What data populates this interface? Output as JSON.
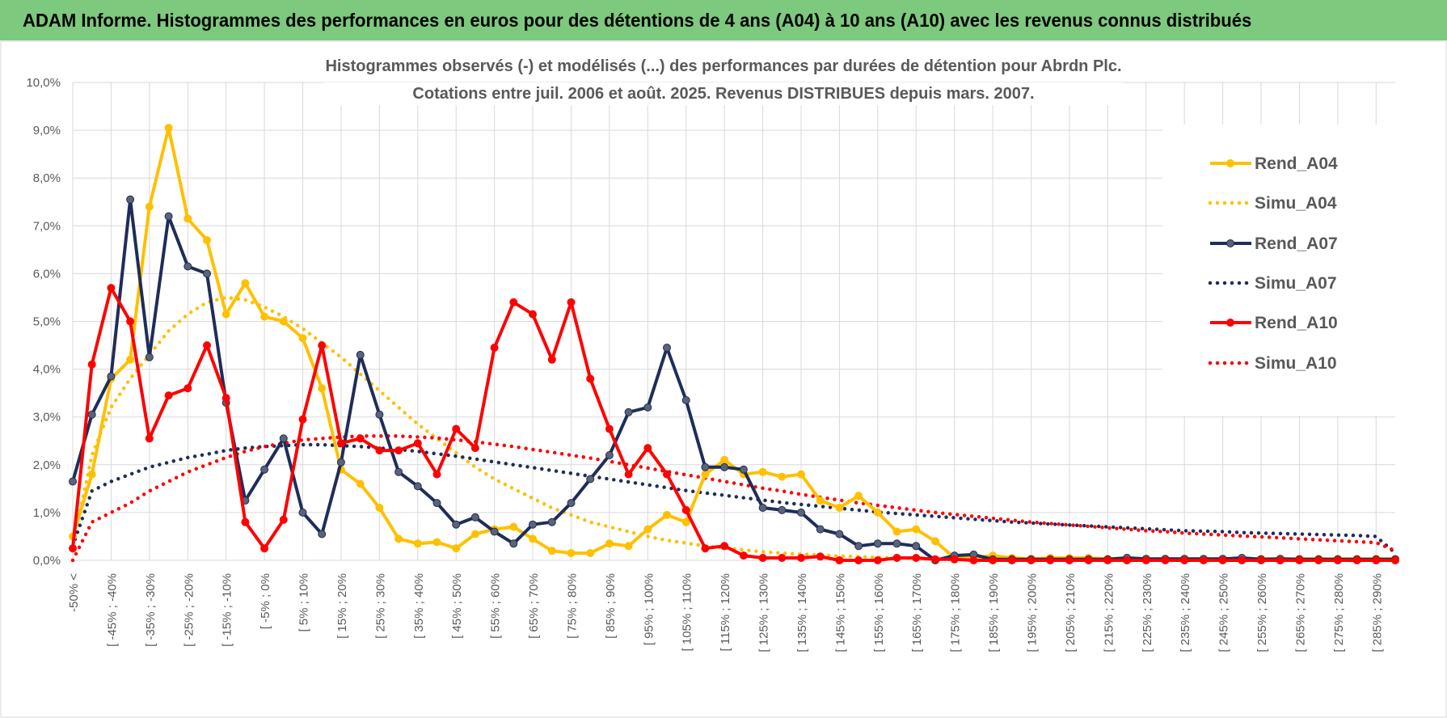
{
  "banner": {
    "title": "ADAM Informe. Histogrammes des performances en euros pour des détentions de 4 ans (A04) à 10 ans (A10) avec les revenus connus distribués"
  },
  "chart_data": {
    "type": "line",
    "title": [
      "Histogrammes observés (-) et modélisés (...) des performances par durées de détention pour Abrdn Plc.",
      "Cotations entre juil. 2006 et août. 2025. Revenus DISTRIBUES depuis mars. 2007."
    ],
    "xlabel": "",
    "ylabel": "",
    "ylim": [
      0,
      10
    ],
    "yticks": [
      "0,0%",
      "1,0%",
      "2,0%",
      "3,0%",
      "4,0%",
      "5,0%",
      "6,0%",
      "7,0%",
      "8,0%",
      "9,0%",
      "10,0%"
    ],
    "grid": true,
    "legend_position": "right",
    "x_tick_labels": [
      "-50% <",
      "[ -45% ; -40%",
      "[ -35% ; -30%",
      "[ -25% ; -20%",
      "[ -15% ; -10%",
      "[ -5% ; 0%",
      "[ 5% ; 10%",
      "[ 15% ; 20%",
      "[ 25% ; 30%",
      "[ 35% ; 40%",
      "[ 45% ; 50%",
      "[ 55% ; 60%",
      "[ 65% ; 70%",
      "[ 75% ; 80%",
      "[ 85% ; 90%",
      "[ 95% ; 100%",
      "[ 105% ; 110%",
      "[ 115% ; 120%",
      "[ 125% ; 130%",
      "[ 135% ; 140%",
      "[ 145% ; 150%",
      "[ 155% ; 160%",
      "[ 165% ; 170%",
      "[ 175% ; 180%",
      "[ 185% ; 190%",
      "[ 195% ; 200%",
      "[ 205% ; 210%",
      "[ 215% ; 220%",
      "[ 225% ; 230%",
      "[ 235% ; 240%",
      "[ 245% ; 250%",
      "[ 255% ; 260%",
      "[ 265% ; 270%",
      "[ 275% ; 280%",
      "[ 285% ; 290%"
    ],
    "num_points": 70,
    "series": [
      {
        "name": "Rend_A04",
        "style": "solid",
        "color": "#ffc000",
        "values": [
          0.5,
          1.8,
          3.8,
          4.2,
          7.4,
          9.05,
          7.15,
          6.7,
          5.15,
          5.8,
          5.1,
          5.0,
          4.65,
          3.6,
          1.9,
          1.6,
          1.1,
          0.45,
          0.35,
          0.38,
          0.25,
          0.55,
          0.65,
          0.7,
          0.45,
          0.2,
          0.15,
          0.15,
          0.35,
          0.3,
          0.65,
          0.95,
          0.8,
          1.8,
          2.1,
          1.8,
          1.85,
          1.75,
          1.8,
          1.25,
          1.1,
          1.35,
          1.0,
          0.6,
          0.65,
          0.4,
          0.05,
          0.05,
          0.1,
          0.05,
          0.03,
          0.05,
          0.05,
          0.05,
          0.03,
          0.05,
          0.03,
          0.03,
          0.03,
          0.03,
          0.03,
          0.03,
          0.03,
          0.03,
          0.03,
          0.03,
          0.03,
          0.03,
          0.03,
          0.03
        ]
      },
      {
        "name": "Simu_A04",
        "style": "dotted",
        "color": "#ffc000",
        "values": [
          0.3,
          2.2,
          3.2,
          3.8,
          4.3,
          4.8,
          5.15,
          5.4,
          5.5,
          5.45,
          5.3,
          5.1,
          4.85,
          4.55,
          4.25,
          3.9,
          3.55,
          3.2,
          2.85,
          2.55,
          2.25,
          1.95,
          1.7,
          1.5,
          1.3,
          1.1,
          0.95,
          0.8,
          0.7,
          0.6,
          0.5,
          0.42,
          0.36,
          0.3,
          0.26,
          0.22,
          0.18,
          0.15,
          0.13,
          0.11,
          0.09,
          0.08,
          0.06,
          0.05,
          0.04,
          0.04,
          0.03,
          0.03,
          0.02,
          0.02,
          0.02,
          0.01,
          0.01,
          0.01,
          0.01,
          0.01,
          0.01,
          0.01,
          0.01,
          0.01,
          0.0,
          0.0,
          0.0,
          0.0,
          0.0,
          0.0,
          0.0,
          0.0,
          0.0,
          0.0
        ]
      },
      {
        "name": "Rend_A07",
        "style": "solid",
        "color": "#1f2d5a",
        "values": [
          1.65,
          3.05,
          3.85,
          7.55,
          4.25,
          7.2,
          6.15,
          6.0,
          3.3,
          1.25,
          1.9,
          2.55,
          1.0,
          0.55,
          2.05,
          4.3,
          3.05,
          1.85,
          1.55,
          1.2,
          0.75,
          0.9,
          0.6,
          0.35,
          0.75,
          0.8,
          1.2,
          1.7,
          2.2,
          3.1,
          3.2,
          4.45,
          3.35,
          1.95,
          1.95,
          1.9,
          1.1,
          1.05,
          1.0,
          0.65,
          0.55,
          0.3,
          0.35,
          0.35,
          0.3,
          0.0,
          0.1,
          0.12,
          0.02,
          0.02,
          0.02,
          0.02,
          0.02,
          0.02,
          0.02,
          0.05,
          0.03,
          0.03,
          0.03,
          0.03,
          0.03,
          0.05,
          0.02,
          0.03,
          0.02,
          0.02,
          0.02,
          0.02,
          0.02,
          0.02
        ]
      },
      {
        "name": "Simu_A07",
        "style": "dotted",
        "color": "#1f2d5a",
        "values": [
          0.3,
          1.45,
          1.65,
          1.8,
          1.95,
          2.05,
          2.15,
          2.22,
          2.3,
          2.35,
          2.38,
          2.4,
          2.42,
          2.42,
          2.4,
          2.38,
          2.35,
          2.32,
          2.28,
          2.23,
          2.18,
          2.12,
          2.06,
          2.0,
          1.94,
          1.88,
          1.82,
          1.76,
          1.7,
          1.64,
          1.58,
          1.52,
          1.46,
          1.41,
          1.36,
          1.31,
          1.26,
          1.21,
          1.17,
          1.13,
          1.09,
          1.05,
          1.01,
          0.98,
          0.95,
          0.92,
          0.89,
          0.86,
          0.83,
          0.8,
          0.78,
          0.76,
          0.74,
          0.72,
          0.7,
          0.68,
          0.66,
          0.64,
          0.62,
          0.61,
          0.6,
          0.58,
          0.57,
          0.56,
          0.55,
          0.54,
          0.53,
          0.52,
          0.5,
          0.15
        ]
      },
      {
        "name": "Rend_A10",
        "style": "solid",
        "color": "#ff0000",
        "values": [
          0.25,
          4.1,
          5.7,
          5.0,
          2.55,
          3.45,
          3.6,
          4.5,
          3.4,
          0.8,
          0.25,
          0.85,
          2.95,
          4.5,
          2.45,
          2.55,
          2.3,
          2.3,
          2.45,
          1.8,
          2.75,
          2.35,
          4.45,
          5.4,
          5.15,
          4.2,
          5.4,
          3.8,
          2.75,
          1.8,
          2.35,
          1.8,
          1.05,
          0.25,
          0.3,
          0.1,
          0.05,
          0.05,
          0.05,
          0.08,
          0.0,
          0.0,
          0.0,
          0.05,
          0.05,
          0.02,
          0.02,
          0.0,
          0.0,
          0.0,
          0.0,
          0.0,
          0.0,
          0.0,
          0.0,
          0.0,
          0.0,
          0.0,
          0.0,
          0.0,
          0.0,
          0.0,
          0.0,
          0.0,
          0.0,
          0.0,
          0.0,
          0.0,
          0.0,
          0.0
        ]
      },
      {
        "name": "Simu_A10",
        "style": "dotted",
        "color": "#ff0000",
        "values": [
          0.0,
          0.8,
          1.0,
          1.2,
          1.45,
          1.65,
          1.85,
          2.0,
          2.15,
          2.28,
          2.38,
          2.45,
          2.52,
          2.55,
          2.58,
          2.6,
          2.6,
          2.6,
          2.58,
          2.56,
          2.52,
          2.48,
          2.43,
          2.38,
          2.32,
          2.26,
          2.2,
          2.14,
          2.07,
          2.0,
          1.93,
          1.86,
          1.79,
          1.72,
          1.65,
          1.58,
          1.51,
          1.45,
          1.38,
          1.32,
          1.26,
          1.2,
          1.15,
          1.1,
          1.05,
          1.0,
          0.96,
          0.92,
          0.88,
          0.84,
          0.8,
          0.77,
          0.74,
          0.71,
          0.68,
          0.65,
          0.62,
          0.6,
          0.57,
          0.55,
          0.53,
          0.51,
          0.49,
          0.47,
          0.45,
          0.43,
          0.41,
          0.39,
          0.37,
          0.2
        ]
      }
    ]
  }
}
